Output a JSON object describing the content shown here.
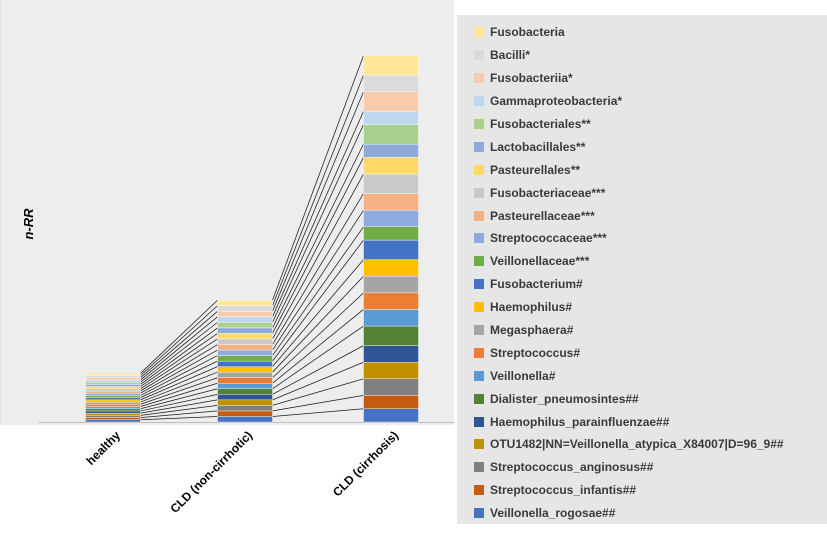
{
  "chart_data": {
    "type": "bar",
    "stacked": true,
    "ylabel": "n-RR",
    "xlabel": "",
    "categories": [
      "healthy",
      "CLD (non-cirrhotic)",
      "CLD (cirrhosis)"
    ],
    "ylim": [
      0,
      100
    ],
    "grid": false,
    "legend_position": "right",
    "series_line_connectors": true,
    "series": [
      {
        "name": "Veillonella_rogosae##",
        "color": "#4472c4",
        "values": [
          0.6,
          1.5,
          3.6
        ]
      },
      {
        "name": "Streptococcus_infantis##",
        "color": "#c55a11",
        "values": [
          0.6,
          1.5,
          3.6
        ]
      },
      {
        "name": "Streptococcus_anginosus##",
        "color": "#7f7f7f",
        "values": [
          0.6,
          1.5,
          4.5
        ]
      },
      {
        "name": "OTU1482|NN=Veillonella_atypica_X84007|D=96_9##",
        "color": "#bf9000",
        "values": [
          0.6,
          1.5,
          4.5
        ]
      },
      {
        "name": "Haemophilus_parainfluenzae##",
        "color": "#2f5597",
        "values": [
          0.6,
          1.5,
          4.5
        ]
      },
      {
        "name": "Dialister_pneumosintes##",
        "color": "#548235",
        "values": [
          0.6,
          1.5,
          5.3
        ]
      },
      {
        "name": "Veillonella#",
        "color": "#5b9bd5",
        "values": [
          0.6,
          1.5,
          4.5
        ]
      },
      {
        "name": "Streptococcus#",
        "color": "#ed7d31",
        "values": [
          0.6,
          1.5,
          4.5
        ]
      },
      {
        "name": "Megasphaera#",
        "color": "#a5a5a5",
        "values": [
          0.6,
          1.5,
          4.5
        ]
      },
      {
        "name": "Haemophilus#",
        "color": "#ffc000",
        "values": [
          0.6,
          1.5,
          4.5
        ]
      },
      {
        "name": "Fusobacterium#",
        "color": "#4472c4",
        "values": [
          0.6,
          1.5,
          5.3
        ]
      },
      {
        "name": "Veillonellaceae***",
        "color": "#70ad47",
        "values": [
          0.6,
          1.5,
          3.6
        ]
      },
      {
        "name": "Streptococcaceae***",
        "color": "#8faadc",
        "values": [
          0.6,
          1.5,
          4.5
        ]
      },
      {
        "name": "Pasteurellaceae***",
        "color": "#f4b183",
        "values": [
          0.6,
          1.5,
          4.5
        ]
      },
      {
        "name": "Fusobacteriaceae***",
        "color": "#c9c9c9",
        "values": [
          0.6,
          1.5,
          5.3
        ]
      },
      {
        "name": "Pasteurellales**",
        "color": "#ffd966",
        "values": [
          0.6,
          1.5,
          4.5
        ]
      },
      {
        "name": "Lactobacillales**",
        "color": "#8eaadb",
        "values": [
          0.6,
          1.5,
          3.6
        ]
      },
      {
        "name": "Fusobacteriales**",
        "color": "#a9d18e",
        "values": [
          0.6,
          1.5,
          5.3
        ]
      },
      {
        "name": "Gammaproteobacteria*",
        "color": "#bdd7ee",
        "values": [
          0.6,
          1.5,
          3.6
        ]
      },
      {
        "name": "Fusobacteriia*",
        "color": "#f8cbad",
        "values": [
          0.6,
          1.5,
          5.3
        ]
      },
      {
        "name": "Bacilli*",
        "color": "#dbdbdb",
        "values": [
          0.6,
          1.5,
          4.5
        ]
      },
      {
        "name": "Fusobacteria",
        "color": "#ffe699",
        "values": [
          0.6,
          1.5,
          5.3
        ]
      }
    ]
  }
}
